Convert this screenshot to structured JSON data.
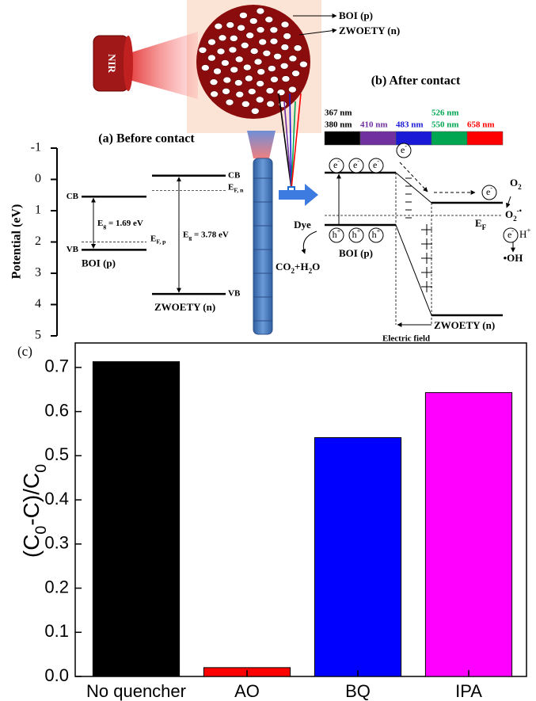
{
  "illustration": {
    "laser": "NIR",
    "boi": "BOI (p)",
    "zwoety": "ZWOETY (n)"
  },
  "figure_a": {
    "title": "(a) Before contact",
    "axis_label": "Potential (eV)",
    "ylim": [
      -1,
      5
    ],
    "yticks": [
      -1,
      0,
      1,
      2,
      3,
      4,
      5
    ],
    "boi": {
      "name": "BOI (p)",
      "cb": 0.55,
      "vb": 2.25,
      "ef": 2.0,
      "cb_label": "CB",
      "vb_label": "VB",
      "ef_label": [
        "E",
        "F, p"
      ],
      "eg_label": [
        "E",
        "g",
        " = 1.69 eV"
      ]
    },
    "zwoety": {
      "name": "ZWOETY (n)",
      "cb": -0.12,
      "vb": 3.66,
      "ef": 0.35,
      "cb_label": "CB",
      "vb_label": "VB",
      "ef_label": [
        "E",
        "F, n"
      ],
      "eg_label": [
        "E",
        "g",
        " = 3.78 eV"
      ]
    }
  },
  "figure_b": {
    "title": "(b) After contact",
    "spectrum": [
      {
        "labels": [
          "367 nm",
          "380 nm"
        ],
        "color": "#000000"
      },
      {
        "labels": [
          "410 nm"
        ],
        "color": "#7030a0"
      },
      {
        "labels": [
          "483 nm"
        ],
        "color": "#1a1ad6"
      },
      {
        "labels": [
          "526 nm",
          "550 nm"
        ],
        "color": "#00a651"
      },
      {
        "labels": [
          "658 nm"
        ],
        "color": "#ff0000"
      }
    ],
    "boi": "BOI (p)",
    "zwoety": "ZWOETY (n)",
    "dye": "Dye",
    "products": [
      "CO",
      "2",
      "+H",
      "2",
      "O"
    ],
    "electron": [
      "e",
      "-"
    ],
    "hole": [
      "h",
      "+"
    ],
    "fermi": [
      "E",
      "F"
    ],
    "oxygen": [
      "O",
      "2"
    ],
    "superoxide": [
      "O",
      "2",
      "-•"
    ],
    "proton": [
      "H",
      "+"
    ],
    "hydroxyl": "•OH",
    "field": "Electric field"
  },
  "chart_data": {
    "type": "bar",
    "panel_label": "(c)",
    "y_label": [
      "(C",
      "0",
      "-C)/C",
      "0"
    ],
    "categories": [
      "No quencher",
      "AO",
      "BQ",
      "IPA"
    ],
    "values": [
      0.713,
      0.02,
      0.541,
      0.643
    ],
    "colors": [
      "#000000",
      "#ff0000",
      "#0000ff",
      "#ff00ff"
    ],
    "ylim": [
      0,
      0.75
    ],
    "yticks": [
      {
        "value": 0,
        "label": "0.0"
      },
      0.1,
      0.2,
      0.3,
      0.4,
      0.5,
      0.6,
      0.7
    ]
  }
}
